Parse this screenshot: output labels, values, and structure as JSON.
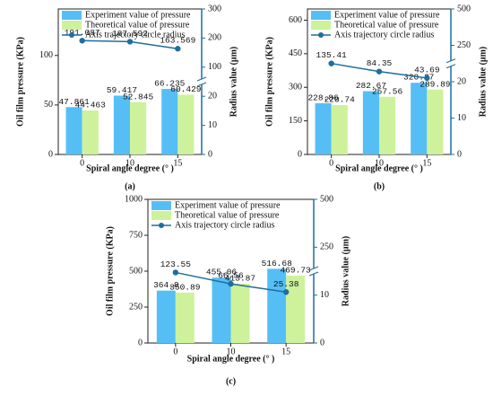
{
  "chart_data": [
    {
      "type": "bar",
      "label": "(a)",
      "xlabel": "Spiral angle degree (° )",
      "ylabel": "Oil film pressure (KPa)",
      "y2label": "Radius value (μm)",
      "categories": [
        "0",
        "10",
        "15"
      ],
      "series": [
        {
          "name": "Experiment value of pressure",
          "color": "#55bff5",
          "values": [
            47.861,
            59.417,
            66.235
          ]
        },
        {
          "name": "Theoretical value of pressure",
          "color": "#cdf29b",
          "values": [
            44.463,
            52.845,
            60.429
          ]
        },
        {
          "name": "Axis trajectory circle radius",
          "color": "#1f6e9e",
          "axis": "y2",
          "values": [
            191.087,
            187.592,
            163.569
          ]
        }
      ],
      "ylim": [
        0,
        147
      ],
      "yticks": [
        0,
        50,
        100
      ],
      "y2lim": [
        0,
        300
      ],
      "y2ticks": [
        0,
        10,
        20,
        100,
        200,
        300
      ]
    },
    {
      "type": "bar",
      "label": "(b)",
      "xlabel": "Spiral angle degree (° )",
      "ylabel": "Oil film pressure (KPa)",
      "y2label": "Radius value (μm)",
      "categories": [
        "0",
        "10",
        "15"
      ],
      "series": [
        {
          "name": "Experiment value of pressure",
          "color": "#55bff5",
          "values": [
            228.86,
            282.67,
            320.27
          ]
        },
        {
          "name": "Theoretical value of pressure",
          "color": "#cdf29b",
          "values": [
            220.74,
            257.56,
            289.89
          ]
        },
        {
          "name": "Axis trajectory circle radius",
          "color": "#1f6e9e",
          "axis": "y2",
          "values": [
            135.41,
            84.35,
            43.69
          ]
        }
      ],
      "ylim": [
        0,
        650
      ],
      "yticks": [
        0,
        150,
        300,
        450,
        600
      ],
      "y2lim": [
        0,
        500
      ],
      "y2ticks": [
        0,
        10,
        20,
        250,
        500
      ]
    },
    {
      "type": "bar",
      "label": "(c)",
      "xlabel": "Spiral angle degree (° )",
      "ylabel": "Oil film pressure (KPa)",
      "y2label": "Radius value (μm)",
      "categories": [
        "0",
        "10",
        "15"
      ],
      "series": [
        {
          "name": "Experiment value of pressure",
          "color": "#55bff5",
          "values": [
            364.8,
            455.06,
            516.68
          ]
        },
        {
          "name": "Theoretical value of pressure",
          "color": "#cdf29b",
          "values": [
            350.89,
            413.87,
            469.73
          ]
        },
        {
          "name": "Axis trajectory circle radius",
          "color": "#1f6e9e",
          "axis": "y2",
          "values": [
            123.55,
            66.56,
            25.38
          ]
        }
      ],
      "ylim": [
        0,
        1000
      ],
      "yticks": [
        0,
        250,
        500,
        750,
        1000
      ],
      "y2lim": [
        0,
        500
      ],
      "y2ticks": [
        0,
        10,
        250,
        500
      ]
    }
  ]
}
